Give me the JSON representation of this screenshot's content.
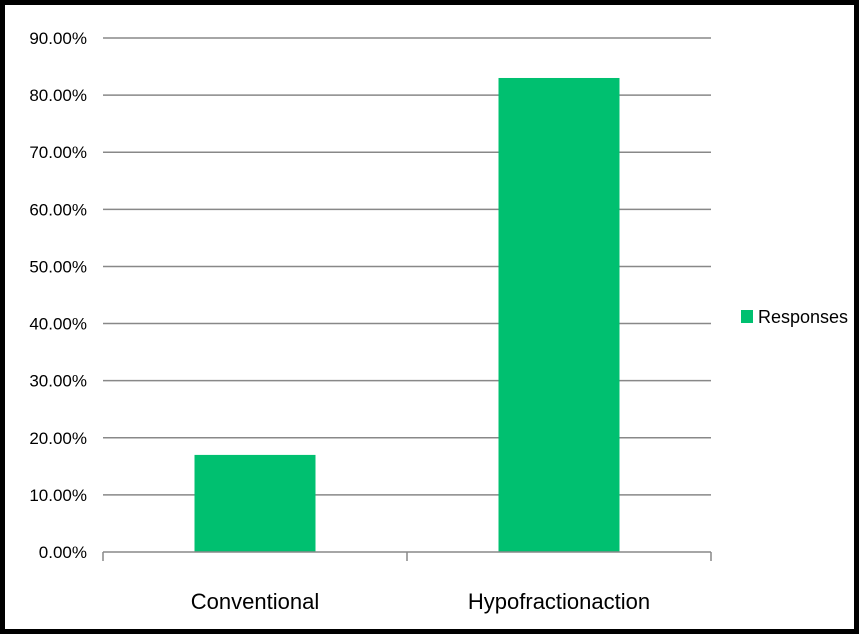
{
  "chart_data": {
    "type": "bar",
    "title": "",
    "xlabel": "",
    "ylabel": "",
    "categories": [
      "Conventional",
      "Hypofractionaction"
    ],
    "series": [
      {
        "name": "Responses",
        "values": [
          0.17,
          0.83
        ],
        "color": "#00c070"
      }
    ],
    "ylim": [
      0,
      0.9
    ],
    "yticks": [
      0,
      0.1,
      0.2,
      0.3,
      0.4,
      0.5,
      0.6,
      0.7,
      0.8,
      0.9
    ],
    "ytick_labels": [
      "0.00%",
      "10.00%",
      "20.00%",
      "30.00%",
      "40.00%",
      "50.00%",
      "60.00%",
      "70.00%",
      "80.00%",
      "90.00%"
    ],
    "grid": true,
    "legend": "right"
  }
}
